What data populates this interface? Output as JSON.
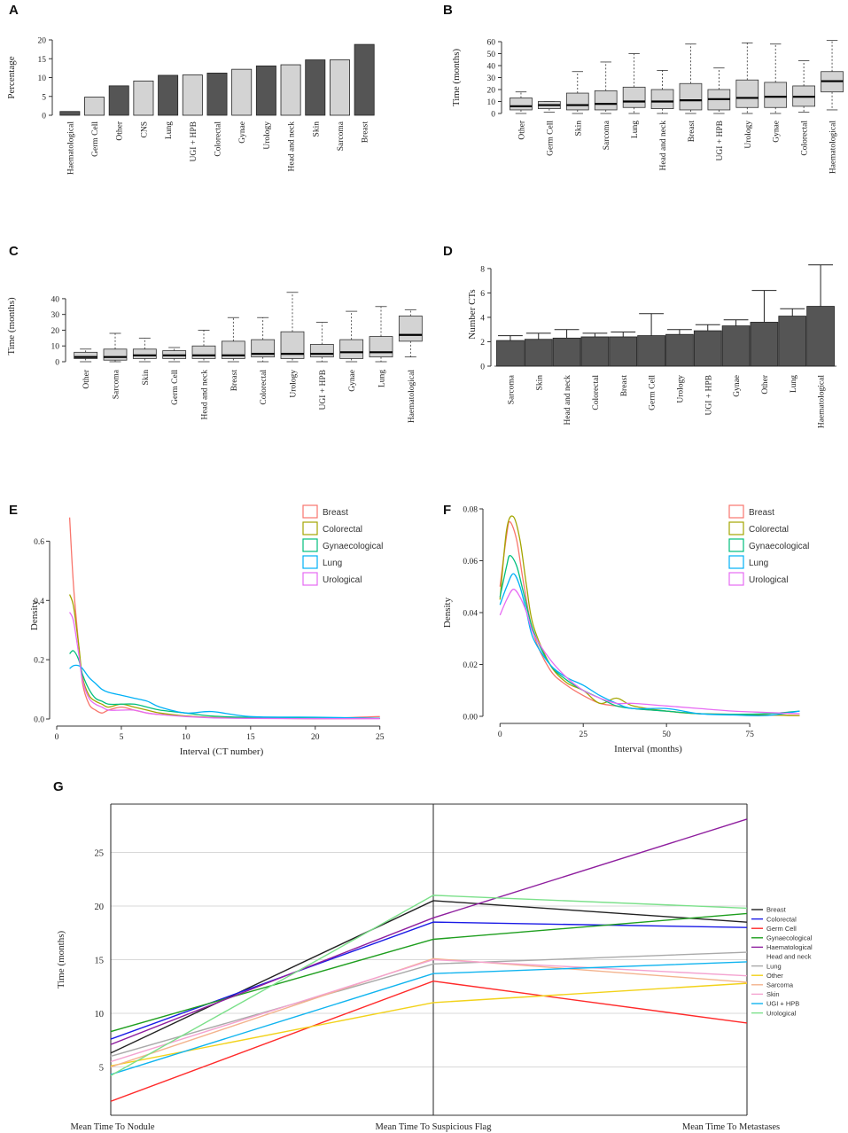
{
  "panels": {
    "A": {
      "letter": "A",
      "type": "bar",
      "ylabel": "Percentage",
      "ylim": [
        0,
        20
      ],
      "yticks": [
        0,
        5,
        10,
        15,
        20
      ],
      "categories": [
        "Haematological",
        "Germ Cell",
        "Other",
        "CNS",
        "Lung",
        "UGI + HPB",
        "Colorectal",
        "Gynae",
        "Urology",
        "Head and neck",
        "Skin",
        "Sarcoma",
        "Breast"
      ],
      "values": [
        1.0,
        4.8,
        7.8,
        9.1,
        10.6,
        10.7,
        11.2,
        12.2,
        13.1,
        13.4,
        14.7,
        14.7,
        18.8
      ],
      "shade": [
        "dark",
        "light",
        "dark",
        "light",
        "dark",
        "light",
        "dark",
        "light",
        "dark",
        "light",
        "dark",
        "light",
        "dark"
      ]
    },
    "B": {
      "letter": "B",
      "type": "box",
      "ylabel": "Time (months)",
      "ylim": [
        0,
        60
      ],
      "yticks": [
        0,
        10,
        20,
        30,
        40,
        50,
        60
      ],
      "categories": [
        "Other",
        "Germ Cell",
        "Skin",
        "Sarcoma",
        "Lung",
        "Head and neck",
        "Breast",
        "UGI + HPB",
        "Urology",
        "Gynae",
        "Colorectal",
        "Haematological"
      ],
      "boxes": [
        {
          "min": 0,
          "q1": 3,
          "med": 6,
          "q3": 13,
          "max": 18
        },
        {
          "min": 1,
          "q1": 4,
          "med": 7,
          "q3": 10,
          "max": 10
        },
        {
          "min": 0,
          "q1": 3,
          "med": 7,
          "q3": 17,
          "max": 35
        },
        {
          "min": 0,
          "q1": 3,
          "med": 8,
          "q3": 19,
          "max": 43
        },
        {
          "min": 0,
          "q1": 5,
          "med": 10,
          "q3": 22,
          "max": 50
        },
        {
          "min": 0,
          "q1": 4,
          "med": 10,
          "q3": 20,
          "max": 36
        },
        {
          "min": 0,
          "q1": 3,
          "med": 11,
          "q3": 25,
          "max": 58
        },
        {
          "min": 0,
          "q1": 3,
          "med": 12,
          "q3": 20,
          "max": 38
        },
        {
          "min": 0,
          "q1": 5,
          "med": 13,
          "q3": 28,
          "max": 59
        },
        {
          "min": 0,
          "q1": 5,
          "med": 14,
          "q3": 26,
          "max": 58
        },
        {
          "min": 1,
          "q1": 6,
          "med": 14,
          "q3": 23,
          "max": 44
        },
        {
          "min": 3,
          "q1": 18,
          "med": 27,
          "q3": 35,
          "max": 61
        }
      ]
    },
    "C": {
      "letter": "C",
      "type": "box",
      "ylabel": "Time (months)",
      "ylim": [
        0,
        45
      ],
      "yticks": [
        0,
        10,
        20,
        30,
        40
      ],
      "categories": [
        "Other",
        "Sarcoma",
        "Skin",
        "Germ Cell",
        "Head and neck",
        "Breast",
        "Colorectal",
        "Urology",
        "UGI + HPB",
        "Gynae",
        "Lung",
        "Haematological"
      ],
      "boxes": [
        {
          "min": 0,
          "q1": 2,
          "med": 3,
          "q3": 6,
          "max": 8
        },
        {
          "min": 0,
          "q1": 1,
          "med": 3,
          "q3": 8,
          "max": 18
        },
        {
          "min": 0,
          "q1": 2,
          "med": 4,
          "q3": 8,
          "max": 15
        },
        {
          "min": 0,
          "q1": 2,
          "med": 4,
          "q3": 7,
          "max": 9
        },
        {
          "min": 0,
          "q1": 2,
          "med": 4,
          "q3": 10,
          "max": 20
        },
        {
          "min": 0,
          "q1": 2,
          "med": 4,
          "q3": 13,
          "max": 28
        },
        {
          "min": 0,
          "q1": 3,
          "med": 5,
          "q3": 14,
          "max": 28
        },
        {
          "min": 0,
          "q1": 2,
          "med": 5,
          "q3": 19,
          "max": 44
        },
        {
          "min": 0,
          "q1": 3,
          "med": 5,
          "q3": 11,
          "max": 25
        },
        {
          "min": 0,
          "q1": 2,
          "med": 6,
          "q3": 14,
          "max": 32
        },
        {
          "min": 0,
          "q1": 3,
          "med": 6,
          "q3": 16,
          "max": 35
        },
        {
          "min": 3,
          "q1": 13,
          "med": 17,
          "q3": 29,
          "max": 33
        }
      ]
    },
    "D": {
      "letter": "D",
      "type": "bar",
      "ylabel": "Number CTs",
      "ylim": [
        0,
        8.5
      ],
      "yticks": [
        0,
        2,
        4,
        6,
        8
      ],
      "categories": [
        "Sarcoma",
        "Skin",
        "Head and neck",
        "Colorectal",
        "Breast",
        "Germ Cell",
        "Urology",
        "UGI + HPB",
        "Gynae",
        "Other",
        "Lung",
        "Haematological"
      ],
      "values": [
        2.1,
        2.2,
        2.3,
        2.4,
        2.4,
        2.5,
        2.6,
        2.9,
        3.3,
        3.6,
        4.1,
        4.9
      ],
      "errors": [
        2.5,
        2.7,
        3.0,
        2.7,
        2.8,
        4.3,
        3.0,
        3.4,
        3.8,
        6.2,
        4.7,
        8.3
      ]
    },
    "E": {
      "letter": "E",
      "type": "line",
      "xlabel": "Interval (CT number)",
      "ylabel": "Density",
      "xlim": [
        0,
        25.5
      ],
      "ylim": [
        0,
        0.7
      ],
      "xticks": [
        0,
        5,
        10,
        15,
        20,
        25
      ],
      "yticks": [
        "0.0",
        "0.2",
        "0.4",
        "0.6"
      ],
      "series": [
        {
          "name": "Breast",
          "color": "#F8766D",
          "x": [
            1,
            1.3,
            1.7,
            2,
            2.5,
            3,
            3.5,
            4,
            5,
            6,
            7,
            8,
            10,
            12,
            15,
            20,
            25
          ],
          "y": [
            0.68,
            0.45,
            0.25,
            0.12,
            0.05,
            0.03,
            0.02,
            0.03,
            0.04,
            0.03,
            0.02,
            0.015,
            0.01,
            0.005,
            0.003,
            0.002,
            0.008
          ]
        },
        {
          "name": "Colorectal",
          "color": "#A3A500",
          "x": [
            1,
            1.3,
            1.7,
            2,
            2.5,
            3,
            3.5,
            4,
            5,
            6,
            7,
            8,
            10,
            12,
            15,
            20,
            25
          ],
          "y": [
            0.42,
            0.38,
            0.25,
            0.14,
            0.08,
            0.06,
            0.05,
            0.04,
            0.05,
            0.04,
            0.03,
            0.02,
            0.01,
            0.005,
            0.003,
            0.001,
            0.002
          ]
        },
        {
          "name": "Gynaecological",
          "color": "#00BF7D",
          "x": [
            1,
            1.3,
            1.7,
            2,
            2.5,
            3,
            3.5,
            4,
            5,
            6,
            7,
            8,
            10,
            12,
            15,
            20,
            25
          ],
          "y": [
            0.22,
            0.23,
            0.2,
            0.15,
            0.1,
            0.07,
            0.06,
            0.05,
            0.05,
            0.05,
            0.04,
            0.03,
            0.02,
            0.01,
            0.005,
            0.002,
            0.002
          ]
        },
        {
          "name": "Lung",
          "color": "#00B0F6",
          "x": [
            1,
            1.3,
            1.7,
            2,
            2.5,
            3,
            3.5,
            4,
            5,
            6,
            7,
            8,
            10,
            12,
            15,
            20,
            25
          ],
          "y": [
            0.17,
            0.18,
            0.18,
            0.17,
            0.14,
            0.12,
            0.1,
            0.09,
            0.08,
            0.07,
            0.06,
            0.04,
            0.02,
            0.025,
            0.008,
            0.006,
            0.002
          ]
        },
        {
          "name": "Urological",
          "color": "#E76BF3",
          "x": [
            1,
            1.3,
            1.7,
            2,
            2.5,
            3,
            3.5,
            4,
            5,
            6,
            7,
            8,
            10,
            12,
            15,
            20,
            25
          ],
          "y": [
            0.36,
            0.33,
            0.22,
            0.13,
            0.07,
            0.05,
            0.04,
            0.03,
            0.03,
            0.03,
            0.02,
            0.015,
            0.008,
            0.004,
            0.002,
            0.001,
            0.001
          ]
        }
      ]
    },
    "F": {
      "letter": "F",
      "type": "line",
      "xlabel": "Interval (months)",
      "ylabel": "Density",
      "xlim": [
        -3,
        92
      ],
      "ylim": [
        0,
        0.08
      ],
      "xticks": [
        0,
        25,
        50,
        75
      ],
      "yticks": [
        "0.00",
        "0.02",
        "0.04",
        "0.06",
        "0.08"
      ],
      "series": [
        {
          "name": "Breast",
          "color": "#F8766D",
          "x": [
            0,
            2,
            3,
            5,
            7,
            10,
            15,
            20,
            25,
            30,
            35,
            40,
            50,
            60,
            70,
            80,
            90
          ],
          "y": [
            0.05,
            0.07,
            0.075,
            0.068,
            0.052,
            0.032,
            0.018,
            0.012,
            0.008,
            0.005,
            0.004,
            0.003,
            0.002,
            0.001,
            0.0008,
            0.0005,
            0.0003
          ]
        },
        {
          "name": "Colorectal",
          "color": "#A3A500",
          "x": [
            0,
            2,
            4,
            6,
            8,
            10,
            15,
            20,
            25,
            30,
            35,
            40,
            50,
            60,
            70,
            80,
            90
          ],
          "y": [
            0.045,
            0.072,
            0.077,
            0.068,
            0.05,
            0.035,
            0.02,
            0.013,
            0.01,
            0.005,
            0.007,
            0.004,
            0.002,
            0.001,
            0.0008,
            0.0005,
            0.0003
          ]
        },
        {
          "name": "Gynaecological",
          "color": "#00BF7D",
          "x": [
            0,
            2,
            3,
            5,
            7,
            10,
            15,
            20,
            25,
            30,
            35,
            40,
            50,
            60,
            70,
            80,
            90
          ],
          "y": [
            0.046,
            0.058,
            0.062,
            0.058,
            0.048,
            0.033,
            0.02,
            0.014,
            0.01,
            0.007,
            0.004,
            0.003,
            0.002,
            0.001,
            0.0008,
            0.001,
            0.002
          ]
        },
        {
          "name": "Lung",
          "color": "#00B0F6",
          "x": [
            0,
            2,
            4,
            6,
            8,
            10,
            15,
            20,
            25,
            30,
            35,
            40,
            50,
            60,
            70,
            80,
            90
          ],
          "y": [
            0.043,
            0.05,
            0.055,
            0.05,
            0.04,
            0.03,
            0.02,
            0.015,
            0.012,
            0.008,
            0.005,
            0.003,
            0.003,
            0.001,
            0.0005,
            0.0003,
            0.002
          ]
        },
        {
          "name": "Urological",
          "color": "#E76BF3",
          "x": [
            0,
            2,
            4,
            6,
            8,
            10,
            15,
            20,
            25,
            30,
            35,
            40,
            50,
            60,
            70,
            80,
            90
          ],
          "y": [
            0.039,
            0.045,
            0.049,
            0.046,
            0.04,
            0.032,
            0.022,
            0.015,
            0.01,
            0.007,
            0.005,
            0.005,
            0.004,
            0.003,
            0.002,
            0.0015,
            0.001
          ]
        }
      ]
    },
    "G": {
      "letter": "G",
      "type": "line",
      "ylabel": "Time (months)",
      "ylim": [
        0.5,
        29.5
      ],
      "yticks": [
        5,
        10,
        15,
        20,
        25
      ],
      "categories": [
        "Mean Time To Nodule",
        "Mean Time To Suspicious Flag",
        "Mean Time To Metastases"
      ],
      "series": [
        {
          "name": "Breast",
          "color": "#222222",
          "values": [
            6.3,
            20.5,
            18.5
          ]
        },
        {
          "name": "Colorectal",
          "color": "#1a1ae6",
          "values": [
            7.6,
            18.5,
            18.0
          ]
        },
        {
          "name": "Germ Cell",
          "color": "#ff2a2a",
          "values": [
            1.8,
            13.0,
            9.1
          ]
        },
        {
          "name": "Gynaecological",
          "color": "#1e9e1e",
          "values": [
            8.3,
            16.9,
            19.3
          ]
        },
        {
          "name": "Haematological",
          "color": "#8e1e9e",
          "values": [
            7.1,
            18.9,
            28.1
          ]
        },
        {
          "name": "Head and neck",
          "color": "#ffffff",
          "values": [
            6.0,
            14.6,
            15.7
          ]
        },
        {
          "name": "Lung",
          "color": "#a9a9a9",
          "values": [
            6.0,
            14.6,
            15.7
          ]
        },
        {
          "name": "Other",
          "color": "#f2d21a",
          "values": [
            5.1,
            11.0,
            12.8
          ]
        },
        {
          "name": "Sarcoma",
          "color": "#f3b38d",
          "values": [
            5.0,
            15.1,
            12.9
          ]
        },
        {
          "name": "Skin",
          "color": "#f4a3d0",
          "values": [
            5.5,
            15.0,
            13.5
          ]
        },
        {
          "name": "UGI + HPB",
          "color": "#10b4ef",
          "values": [
            4.3,
            13.7,
            14.8
          ]
        },
        {
          "name": "Urological",
          "color": "#7be08a",
          "values": [
            4.2,
            21.0,
            19.8
          ]
        }
      ]
    }
  }
}
